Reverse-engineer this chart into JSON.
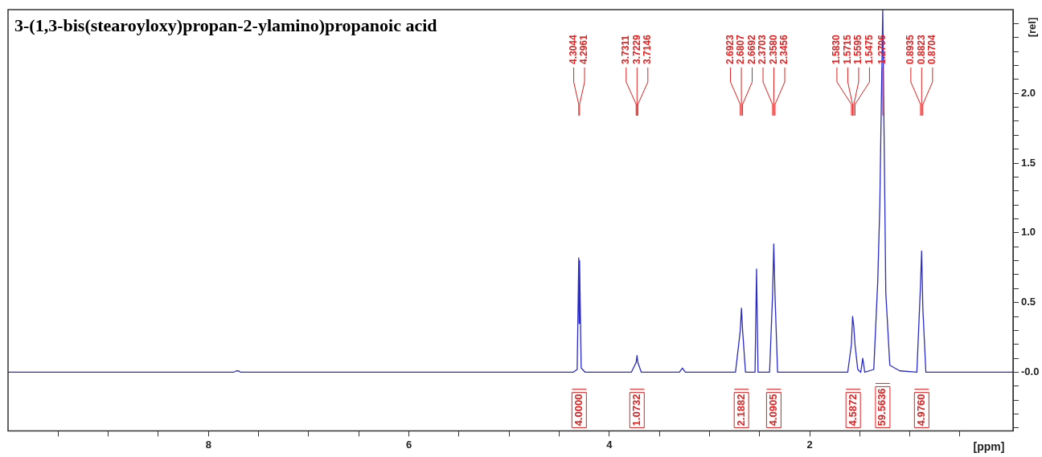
{
  "chart_data": {
    "type": "line",
    "title": "3-(1,3-bis(stearoyloxy)propan-2-ylamino)propanoic acid",
    "xlabel": "[ppm]",
    "ylabel": "[rel]",
    "xlim": [
      10,
      -0.03
    ],
    "ylim": [
      -0.42,
      2.6
    ],
    "xticks": [
      {
        "value": 9.5,
        "label": null
      },
      {
        "value": 9,
        "label": null
      },
      {
        "value": 8.5,
        "label": null
      },
      8,
      {
        "value": 7.5,
        "label": null
      },
      {
        "value": 7,
        "label": null
      },
      {
        "value": 6.5,
        "label": null
      },
      6,
      {
        "value": 5.5,
        "label": null
      },
      {
        "value": 5,
        "label": null
      },
      {
        "value": 4.5,
        "label": null
      },
      4,
      {
        "value": 3.5,
        "label": null
      },
      {
        "value": 3,
        "label": null
      },
      {
        "value": 2.5,
        "label": null
      },
      2,
      {
        "value": 1.5,
        "label": null
      },
      {
        "value": 1,
        "label": null
      },
      {
        "value": 0.5,
        "label": null
      }
    ],
    "yticks": [
      {
        "value": -0.4,
        "label": null
      },
      {
        "value": -0.3,
        "label": null
      },
      {
        "value": -0.2,
        "label": null
      },
      {
        "value": -0.1,
        "label": null
      },
      {
        "value": 0,
        "label": "-0.0"
      },
      {
        "value": 0.1,
        "label": null
      },
      {
        "value": 0.2,
        "label": null
      },
      {
        "value": 0.3,
        "label": null
      },
      {
        "value": 0.4,
        "label": null
      },
      {
        "value": 0.5,
        "label": "0.5"
      },
      {
        "value": 0.6,
        "label": null
      },
      {
        "value": 0.7,
        "label": null
      },
      {
        "value": 0.8,
        "label": null
      },
      {
        "value": 0.9,
        "label": null
      },
      {
        "value": 1.0,
        "label": "1.0"
      },
      {
        "value": 1.1,
        "label": null
      },
      {
        "value": 1.2,
        "label": null
      },
      {
        "value": 1.3,
        "label": null
      },
      {
        "value": 1.4,
        "label": null
      },
      {
        "value": 1.5,
        "label": "1.5"
      },
      {
        "value": 1.6,
        "label": null
      },
      {
        "value": 1.7,
        "label": null
      },
      {
        "value": 1.8,
        "label": null
      },
      {
        "value": 1.9,
        "label": null
      },
      {
        "value": 2.0,
        "label": "2.0"
      },
      {
        "value": 2.1,
        "label": null
      },
      {
        "value": 2.2,
        "label": null
      },
      {
        "value": 2.3,
        "label": null
      },
      {
        "value": 2.4,
        "label": null
      },
      {
        "value": 2.5,
        "label": null
      }
    ],
    "marker": "none",
    "line_style": "solid",
    "series": [
      {
        "color": "#2a2ac8",
        "x": [
          10,
          7.75,
          7.72,
          7.7,
          7.68,
          7.65,
          5.0,
          4.36,
          4.32,
          4.3044,
          4.3,
          4.2961,
          4.28,
          4.24,
          3.78,
          3.7311,
          3.7229,
          3.7146,
          3.68,
          3.3,
          3.27,
          3.24,
          2.74,
          2.6923,
          2.6807,
          2.6692,
          2.64,
          2.545,
          2.53,
          2.515,
          2.4,
          2.3703,
          2.358,
          2.3456,
          2.32,
          1.62,
          1.583,
          1.5715,
          1.5595,
          1.5475,
          1.52,
          1.49,
          1.47,
          1.45,
          1.36,
          1.32,
          1.3,
          1.2706,
          1.24,
          1.2,
          1.1,
          0.93,
          0.8935,
          0.8823,
          0.8704,
          0.84,
          0.5,
          -0.03
        ],
        "values": [
          0,
          0,
          0.01,
          0.01,
          0,
          0,
          0,
          0,
          0.02,
          0.82,
          0.35,
          0.8,
          0.03,
          0,
          0,
          0.07,
          0.12,
          0.07,
          0,
          0,
          0.03,
          0,
          0,
          0.3,
          0.46,
          0.3,
          0,
          0,
          0.74,
          0,
          0,
          0.55,
          0.92,
          0.55,
          0,
          0,
          0.2,
          0.4,
          0.33,
          0.2,
          0.02,
          0,
          0.1,
          0,
          0.02,
          0.66,
          1.19,
          2.6,
          0.57,
          0.05,
          0.01,
          0,
          0.63,
          0.87,
          0.46,
          0,
          0,
          0
        ]
      }
    ],
    "annotations": [
      {
        "text": "4.3044",
        "x": 4.3044
      },
      {
        "text": "4.2961",
        "x": 4.2961
      },
      {
        "text": "3.7311",
        "x": 3.7311
      },
      {
        "text": "3.7229",
        "x": 3.7229
      },
      {
        "text": "3.7146",
        "x": 3.7146
      },
      {
        "text": "2.6923",
        "x": 2.6923
      },
      {
        "text": "2.6807",
        "x": 2.6807
      },
      {
        "text": "2.6692",
        "x": 2.6692
      },
      {
        "text": "2.3703",
        "x": 2.3703
      },
      {
        "text": "2.3580",
        "x": 2.358
      },
      {
        "text": "2.3456",
        "x": 2.3456
      },
      {
        "text": "1.5830",
        "x": 1.583
      },
      {
        "text": "1.5715",
        "x": 1.5715
      },
      {
        "text": "1.5595",
        "x": 1.5595
      },
      {
        "text": "1.5475",
        "x": 1.5475
      },
      {
        "text": "1.2706",
        "x": 1.2706
      },
      {
        "text": "0.8935",
        "x": 0.8935
      },
      {
        "text": "0.8823",
        "x": 0.8823
      },
      {
        "text": "0.8704",
        "x": 0.8704
      },
      "4.0000",
      "1.0732",
      "2.1882",
      "4.0905",
      "4.5872",
      "59.5636",
      "4.9760"
    ]
  }
}
